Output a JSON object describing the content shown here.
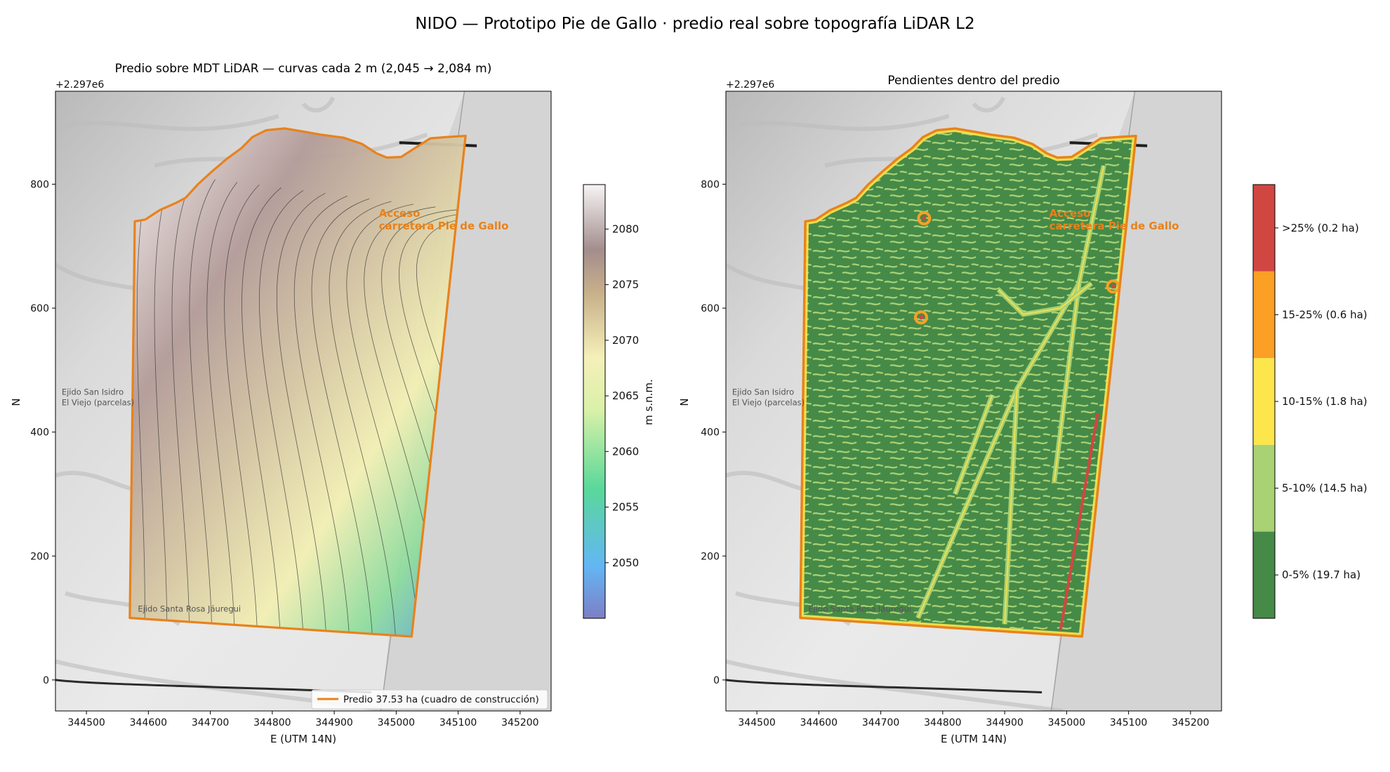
{
  "figure": {
    "suptitle": "NIDO — Prototipo Pie de Gallo · predio real sobre topografía LiDAR L2"
  },
  "colors": {
    "boundary": "#e8821c",
    "hillshade_light": "#e6e6e6",
    "hillshade_dark": "#a9a9a9",
    "outside_gray": "#d4d4d4"
  },
  "axes_common": {
    "xlabel": "E (UTM 14N)",
    "ylabel": "N",
    "offset_text": "+2.297e6",
    "xlim": [
      344450,
      345250
    ],
    "ylim": [
      -50,
      950
    ],
    "xticks": [
      "344500",
      "344600",
      "344700",
      "344800",
      "344900",
      "345000",
      "345100",
      "345200"
    ],
    "xtick_values": [
      344500,
      344600,
      344700,
      344800,
      344900,
      345000,
      345100,
      345200
    ],
    "yticks": [
      "0",
      "200",
      "400",
      "600",
      "800"
    ],
    "ytick_values": [
      0,
      200,
      400,
      600,
      800
    ]
  },
  "map_annotations": {
    "ejido_san_isidro": [
      "Ejido San Isidro",
      "El Viejo (parcelas)"
    ],
    "ejido_santa_rosa": "Ejido Santa Rosa Jáuregui",
    "access": [
      "Acceso",
      "carretera Pie de Gallo"
    ]
  },
  "parcel": {
    "boundary_utm_offset": [
      [
        344570,
        100
      ],
      [
        344578,
        740
      ],
      [
        344595,
        743
      ],
      [
        344618,
        758
      ],
      [
        344645,
        770
      ],
      [
        344660,
        778
      ],
      [
        344680,
        800
      ],
      [
        344702,
        820
      ],
      [
        344728,
        842
      ],
      [
        344750,
        858
      ],
      [
        344768,
        876
      ],
      [
        344790,
        887
      ],
      [
        344820,
        890
      ],
      [
        344850,
        885
      ],
      [
        344878,
        880
      ],
      [
        344915,
        875
      ],
      [
        344945,
        865
      ],
      [
        344968,
        850
      ],
      [
        344985,
        843
      ],
      [
        345008,
        844
      ],
      [
        345030,
        858
      ],
      [
        345055,
        874
      ],
      [
        345080,
        876
      ],
      [
        345112,
        878
      ],
      [
        345025,
        70
      ]
    ]
  },
  "left_panel": {
    "title": "Predio sobre MDT LiDAR — curvas cada 2 m (2,045 → 2,084 m)",
    "legend_label": "Predio 37.53 ha (cuadro de construcción)",
    "colorbar": {
      "label": "m s.n.m.",
      "ticks": [
        "2050",
        "2055",
        "2060",
        "2065",
        "2070",
        "2075",
        "2080"
      ],
      "tick_values": [
        2050,
        2055,
        2060,
        2065,
        2070,
        2075,
        2080
      ],
      "range": [
        2045,
        2084
      ]
    },
    "contour_interval_m": 2,
    "elevation_range_m": [
      2045,
      2084
    ]
  },
  "right_panel": {
    "title": "Pendientes dentro del predio",
    "slope_classes": [
      {
        "label": "0-5% (19.7 ha)",
        "color": "#468a48"
      },
      {
        "label": "5-10% (14.5 ha)",
        "color": "#a9d274"
      },
      {
        "label": "10-15% (1.8 ha)",
        "color": "#fde64c"
      },
      {
        "label": "15-25% (0.6 ha)",
        "color": "#fb9f25"
      },
      {
        "label": ">25% (0.2 ha)",
        "color": "#d24642"
      }
    ]
  }
}
